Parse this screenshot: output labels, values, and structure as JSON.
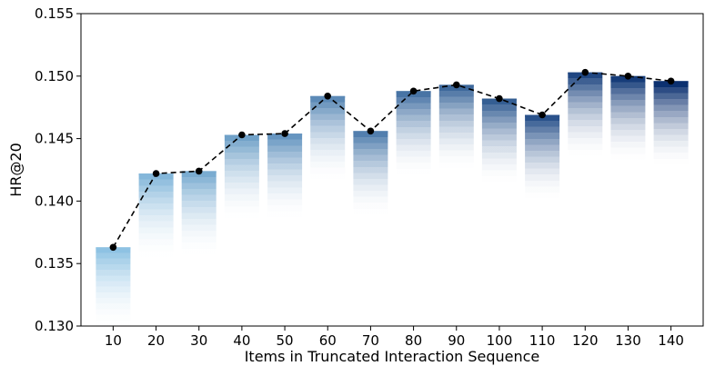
{
  "chart_data": {
    "type": "bar",
    "xlabel": "Items in Truncated Interaction Sequence",
    "ylabel": "HR@20",
    "ylim": [
      0.13,
      0.155
    ],
    "yticks": [
      "0.130",
      "0.135",
      "0.140",
      "0.145",
      "0.150",
      "0.155"
    ],
    "categories": [
      "10",
      "20",
      "30",
      "40",
      "50",
      "60",
      "70",
      "80",
      "90",
      "100",
      "110",
      "120",
      "130",
      "140"
    ],
    "values": [
      0.1363,
      0.1422,
      0.1424,
      0.1453,
      0.1454,
      0.1484,
      0.1456,
      0.1488,
      0.1493,
      0.1482,
      0.1469,
      0.1503,
      0.15,
      0.1496
    ],
    "line": {
      "style": "dashed",
      "marker": "circle",
      "color": "#000000",
      "values": [
        0.1363,
        0.1422,
        0.1424,
        0.1453,
        0.1454,
        0.1484,
        0.1456,
        0.1488,
        0.1493,
        0.1482,
        0.1469,
        0.1503,
        0.15,
        0.1496
      ]
    },
    "bar_colors": {
      "light": "#8ec2e3",
      "dark": "#0c3170",
      "fade_to": "#ffffff"
    },
    "grid": false,
    "legend": "none"
  }
}
